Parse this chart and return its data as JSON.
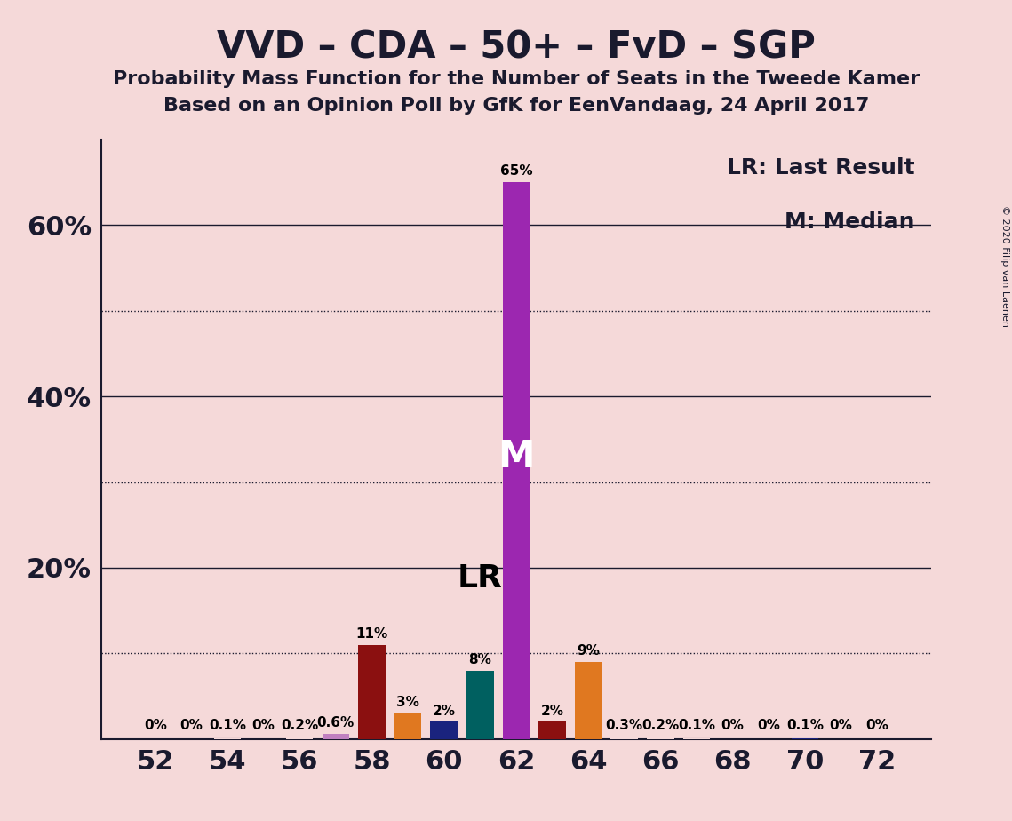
{
  "title": "VVD – CDA – 50+ – FvD – SGP",
  "subtitle1": "Probability Mass Function for the Number of Seats in the Tweede Kamer",
  "subtitle2": "Based on an Opinion Poll by GfK for EenVandaag, 24 April 2017",
  "copyright": "© 2020 Filip van Laenen",
  "background_color": "#f5d9d9",
  "seats": [
    52,
    53,
    54,
    55,
    56,
    57,
    58,
    59,
    60,
    61,
    62,
    63,
    64,
    65,
    66,
    67,
    68,
    69,
    70,
    71,
    72
  ],
  "values": [
    0.0,
    0.0,
    0.1,
    0.0,
    0.2,
    0.6,
    11.0,
    3.0,
    2.0,
    8.0,
    65.0,
    2.0,
    9.0,
    0.3,
    0.2,
    0.1,
    0.0,
    0.0,
    0.1,
    0.0,
    0.0
  ],
  "colors": [
    "#f5d9d9",
    "#f5d9d9",
    "#f5d9d9",
    "#f5d9d9",
    "#f5d9d9",
    "#c080c0",
    "#8b1010",
    "#e07820",
    "#1a237e",
    "#006060",
    "#9c27b0",
    "#8b1010",
    "#e07820",
    "#f5d9d9",
    "#f5d9d9",
    "#f5d9d9",
    "#f5d9d9",
    "#f5d9d9",
    "#1a237e",
    "#f5d9d9",
    "#f5d9d9"
  ],
  "labels": [
    "0%",
    "0%",
    "0.1%",
    "0%",
    "0.2%",
    "0.6%",
    "11%",
    "3%",
    "2%",
    "8%",
    "65%",
    "2%",
    "9%",
    "0.3%",
    "0.2%",
    "0.1%",
    "0%",
    "0%",
    "0.1%",
    "0%",
    "0%"
  ],
  "median_seat": 62,
  "lr_seat": 61,
  "lr_label": "LR",
  "median_label": "M",
  "legend_lr": "LR: Last Result",
  "legend_m": "M: Median",
  "ylim_max": 70,
  "solid_gridlines": [
    20,
    40,
    60
  ],
  "dotted_gridlines": [
    10,
    30,
    50
  ],
  "ytick_positions": [
    20,
    40,
    60
  ],
  "ytick_labels": [
    "20%",
    "40%",
    "60%"
  ],
  "bar_width": 0.75,
  "title_fontsize": 30,
  "subtitle_fontsize": 16,
  "tick_fontsize": 22,
  "label_fontsize": 11,
  "legend_fontsize": 18,
  "copyright_fontsize": 8
}
